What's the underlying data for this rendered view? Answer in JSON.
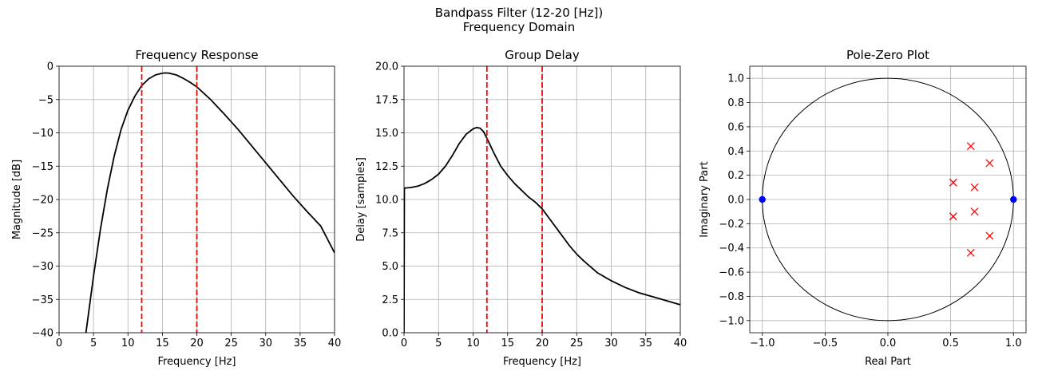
{
  "figure": {
    "suptitle_line1": "Bandpass Filter (12-20 [Hz])",
    "suptitle_line2": "Frequency Domain"
  },
  "chart_data": [
    {
      "type": "line",
      "title": "Frequency Response",
      "xlabel": "Frequency [Hz]",
      "ylabel": "Magnitude [dB]",
      "xlim": [
        0,
        40
      ],
      "ylim": [
        -40,
        0
      ],
      "xticks": [
        0,
        5,
        10,
        15,
        20,
        25,
        30,
        35,
        40
      ],
      "xtick_labels": [
        "0",
        "5",
        "10",
        "15",
        "20",
        "25",
        "30",
        "35",
        "40"
      ],
      "yticks": [
        -40,
        -35,
        -30,
        -25,
        -20,
        -15,
        -10,
        -5,
        0
      ],
      "ytick_labels": [
        "−40",
        "−35",
        "−30",
        "−25",
        "−20",
        "−15",
        "−10",
        "−5",
        "0"
      ],
      "grid": true,
      "cutoffs": [
        12,
        20
      ],
      "cutoff_color": "#ff0000",
      "line_color": "#000000",
      "series": [
        {
          "x": [
            3.9,
            5,
            6,
            7,
            8,
            9,
            10,
            11,
            12,
            13,
            14,
            15,
            15.5,
            16,
            17,
            18,
            19,
            20,
            22,
            24,
            26,
            28,
            30,
            32,
            34,
            36,
            38,
            40
          ],
          "y": [
            -40,
            -31.5,
            -24.5,
            -18.5,
            -13.5,
            -9.5,
            -6.6,
            -4.5,
            -2.9,
            -1.9,
            -1.3,
            -1.05,
            -1.0,
            -1.05,
            -1.3,
            -1.8,
            -2.4,
            -3.1,
            -5.0,
            -7.2,
            -9.5,
            -12.0,
            -14.5,
            -17.0,
            -19.5,
            -21.8,
            -24.0,
            -28.0
          ]
        }
      ]
    },
    {
      "type": "line",
      "title": "Group Delay",
      "xlabel": "Frequency [Hz]",
      "ylabel": "Delay [samples]",
      "xlim": [
        0,
        40
      ],
      "ylim": [
        0,
        20
      ],
      "xticks": [
        0,
        5,
        10,
        15,
        20,
        25,
        30,
        35,
        40
      ],
      "xtick_labels": [
        "0",
        "5",
        "10",
        "15",
        "20",
        "25",
        "30",
        "35",
        "40"
      ],
      "yticks": [
        0,
        2.5,
        5,
        7.5,
        10,
        12.5,
        15,
        17.5,
        20
      ],
      "ytick_labels": [
        "0.0",
        "2.5",
        "5.0",
        "7.5",
        "10.0",
        "12.5",
        "15.0",
        "17.5",
        "20.0"
      ],
      "grid": true,
      "cutoffs": [
        12,
        20
      ],
      "cutoff_color": "#ff0000",
      "line_color": "#000000",
      "series": [
        {
          "x": [
            0,
            0.05,
            1,
            2,
            3,
            4,
            5,
            6,
            7,
            8,
            9,
            10,
            10.5,
            11,
            11.5,
            12,
            13,
            14,
            15,
            16,
            17,
            18,
            19,
            20,
            21,
            22,
            23,
            24,
            25,
            26,
            28,
            30,
            32,
            34,
            36,
            38,
            40
          ],
          "y": [
            0,
            10.85,
            10.9,
            11.0,
            11.2,
            11.5,
            11.9,
            12.5,
            13.3,
            14.2,
            14.9,
            15.3,
            15.4,
            15.35,
            15.1,
            14.6,
            13.5,
            12.5,
            11.8,
            11.2,
            10.7,
            10.2,
            9.8,
            9.3,
            8.6,
            7.9,
            7.2,
            6.5,
            5.9,
            5.4,
            4.5,
            3.9,
            3.4,
            3.0,
            2.7,
            2.4,
            2.1
          ]
        }
      ]
    },
    {
      "type": "scatter",
      "title": "Pole-Zero Plot",
      "xlabel": "Real Part",
      "ylabel": "Imaginary Part",
      "xlim": [
        -1.1,
        1.1
      ],
      "ylim": [
        -1.1,
        1.1
      ],
      "xticks": [
        -1.0,
        -0.5,
        0.0,
        0.5,
        1.0
      ],
      "xtick_labels": [
        "−1.0",
        "−0.5",
        "0.0",
        "0.5",
        "1.0"
      ],
      "yticks": [
        -1.0,
        -0.8,
        -0.6,
        -0.4,
        -0.2,
        0.0,
        0.2,
        0.4,
        0.6,
        0.8,
        1.0
      ],
      "ytick_labels": [
        "−1.0",
        "−0.8",
        "−0.6",
        "−0.4",
        "−0.2",
        "0.0",
        "0.2",
        "0.4",
        "0.6",
        "0.8",
        "1.0"
      ],
      "grid": true,
      "unit_circle": true,
      "zeros_color": "#0000ff",
      "poles_color": "#ff0000",
      "zeros": [
        [
          -1.0,
          0.0
        ],
        [
          1.0,
          0.0
        ]
      ],
      "poles": [
        [
          0.66,
          0.44
        ],
        [
          0.81,
          0.3
        ],
        [
          0.52,
          0.14
        ],
        [
          0.69,
          0.1
        ],
        [
          0.69,
          -0.1
        ],
        [
          0.52,
          -0.14
        ],
        [
          0.81,
          -0.3
        ],
        [
          0.66,
          -0.44
        ]
      ]
    }
  ]
}
